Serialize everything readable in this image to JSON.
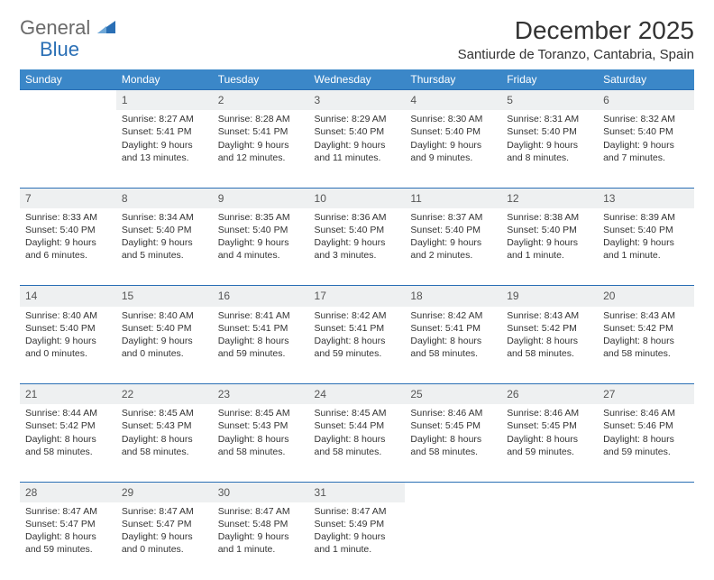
{
  "logo": {
    "part1": "General",
    "part2": "Blue"
  },
  "title": "December 2025",
  "location": "Santiurde de Toranzo, Cantabria, Spain",
  "colors": {
    "header_bg": "#3b87c8",
    "border": "#2a6fb5",
    "daynum_bg": "#eef0f1",
    "logo_gray": "#6a6a6a",
    "logo_blue": "#2a6fb5"
  },
  "weekdays": [
    "Sunday",
    "Monday",
    "Tuesday",
    "Wednesday",
    "Thursday",
    "Friday",
    "Saturday"
  ],
  "weeks": [
    {
      "nums": [
        "",
        "1",
        "2",
        "3",
        "4",
        "5",
        "6"
      ],
      "details": [
        "",
        "Sunrise: 8:27 AM\nSunset: 5:41 PM\nDaylight: 9 hours and 13 minutes.",
        "Sunrise: 8:28 AM\nSunset: 5:41 PM\nDaylight: 9 hours and 12 minutes.",
        "Sunrise: 8:29 AM\nSunset: 5:40 PM\nDaylight: 9 hours and 11 minutes.",
        "Sunrise: 8:30 AM\nSunset: 5:40 PM\nDaylight: 9 hours and 9 minutes.",
        "Sunrise: 8:31 AM\nSunset: 5:40 PM\nDaylight: 9 hours and 8 minutes.",
        "Sunrise: 8:32 AM\nSunset: 5:40 PM\nDaylight: 9 hours and 7 minutes."
      ]
    },
    {
      "nums": [
        "7",
        "8",
        "9",
        "10",
        "11",
        "12",
        "13"
      ],
      "details": [
        "Sunrise: 8:33 AM\nSunset: 5:40 PM\nDaylight: 9 hours and 6 minutes.",
        "Sunrise: 8:34 AM\nSunset: 5:40 PM\nDaylight: 9 hours and 5 minutes.",
        "Sunrise: 8:35 AM\nSunset: 5:40 PM\nDaylight: 9 hours and 4 minutes.",
        "Sunrise: 8:36 AM\nSunset: 5:40 PM\nDaylight: 9 hours and 3 minutes.",
        "Sunrise: 8:37 AM\nSunset: 5:40 PM\nDaylight: 9 hours and 2 minutes.",
        "Sunrise: 8:38 AM\nSunset: 5:40 PM\nDaylight: 9 hours and 1 minute.",
        "Sunrise: 8:39 AM\nSunset: 5:40 PM\nDaylight: 9 hours and 1 minute."
      ]
    },
    {
      "nums": [
        "14",
        "15",
        "16",
        "17",
        "18",
        "19",
        "20"
      ],
      "details": [
        "Sunrise: 8:40 AM\nSunset: 5:40 PM\nDaylight: 9 hours and 0 minutes.",
        "Sunrise: 8:40 AM\nSunset: 5:40 PM\nDaylight: 9 hours and 0 minutes.",
        "Sunrise: 8:41 AM\nSunset: 5:41 PM\nDaylight: 8 hours and 59 minutes.",
        "Sunrise: 8:42 AM\nSunset: 5:41 PM\nDaylight: 8 hours and 59 minutes.",
        "Sunrise: 8:42 AM\nSunset: 5:41 PM\nDaylight: 8 hours and 58 minutes.",
        "Sunrise: 8:43 AM\nSunset: 5:42 PM\nDaylight: 8 hours and 58 minutes.",
        "Sunrise: 8:43 AM\nSunset: 5:42 PM\nDaylight: 8 hours and 58 minutes."
      ]
    },
    {
      "nums": [
        "21",
        "22",
        "23",
        "24",
        "25",
        "26",
        "27"
      ],
      "details": [
        "Sunrise: 8:44 AM\nSunset: 5:42 PM\nDaylight: 8 hours and 58 minutes.",
        "Sunrise: 8:45 AM\nSunset: 5:43 PM\nDaylight: 8 hours and 58 minutes.",
        "Sunrise: 8:45 AM\nSunset: 5:43 PM\nDaylight: 8 hours and 58 minutes.",
        "Sunrise: 8:45 AM\nSunset: 5:44 PM\nDaylight: 8 hours and 58 minutes.",
        "Sunrise: 8:46 AM\nSunset: 5:45 PM\nDaylight: 8 hours and 58 minutes.",
        "Sunrise: 8:46 AM\nSunset: 5:45 PM\nDaylight: 8 hours and 59 minutes.",
        "Sunrise: 8:46 AM\nSunset: 5:46 PM\nDaylight: 8 hours and 59 minutes."
      ]
    },
    {
      "nums": [
        "28",
        "29",
        "30",
        "31",
        "",
        "",
        ""
      ],
      "details": [
        "Sunrise: 8:47 AM\nSunset: 5:47 PM\nDaylight: 8 hours and 59 minutes.",
        "Sunrise: 8:47 AM\nSunset: 5:47 PM\nDaylight: 9 hours and 0 minutes.",
        "Sunrise: 8:47 AM\nSunset: 5:48 PM\nDaylight: 9 hours and 1 minute.",
        "Sunrise: 8:47 AM\nSunset: 5:49 PM\nDaylight: 9 hours and 1 minute.",
        "",
        "",
        ""
      ]
    }
  ]
}
